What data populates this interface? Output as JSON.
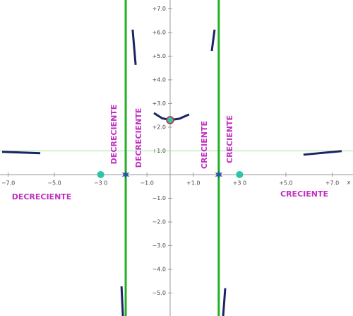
{
  "chart_data": {
    "type": "function",
    "x_label": "x",
    "xlim": [
      -7.35,
      7.9
    ],
    "ylim": [
      -5.97,
      7.37
    ],
    "xticks": [
      {
        "value": -7,
        "label": "−7.0"
      },
      {
        "value": -5,
        "label": "−5.0"
      },
      {
        "value": -3,
        "label": "−3 0"
      },
      {
        "value": -1,
        "label": "−1.0"
      },
      {
        "value": 1,
        "label": "+1.0"
      },
      {
        "value": 3,
        "label": "+3 0"
      },
      {
        "value": 5,
        "label": "+5.0"
      },
      {
        "value": 7,
        "label": "+7.0"
      }
    ],
    "yticks": [
      {
        "value": 7,
        "label": "+7.0"
      },
      {
        "value": 6,
        "label": "+6.0"
      },
      {
        "value": 5,
        "label": "+5.0"
      },
      {
        "value": 4,
        "label": "+4.0"
      },
      {
        "value": 3,
        "label": "+3.0"
      },
      {
        "value": 2,
        "label": "+2.0"
      },
      {
        "value": 1,
        "label": "+1.0"
      },
      {
        "value": -1,
        "label": "−1.0"
      },
      {
        "value": -2,
        "label": "−2.0"
      },
      {
        "value": -3,
        "label": "−3.0"
      },
      {
        "value": -4,
        "label": "−4.0"
      },
      {
        "value": -5,
        "label": "−5.0"
      }
    ],
    "color": "#1c2366",
    "series": [
      {
        "x": [
          -7.26,
          -5.61
        ],
        "values": [
          0.96,
          0.9
        ]
      },
      {
        "x": [
          -2.1,
          -2.04
        ],
        "values": [
          -4.72,
          -5.97
        ]
      },
      {
        "x": [
          -1.62,
          -1.49
        ],
        "values": [
          6.12,
          4.63
        ]
      },
      {
        "x": [
          -0.7,
          -0.35,
          0,
          0.4,
          0.82
        ],
        "values": [
          2.6,
          2.38,
          2.3,
          2.36,
          2.54
        ]
      },
      {
        "x": [
          1.8,
          1.92
        ],
        "values": [
          5.22,
          6.12
        ]
      },
      {
        "x": [
          2.29,
          2.38
        ],
        "values": [
          -5.97,
          -4.8
        ]
      },
      {
        "x": [
          5.76,
          7.41
        ],
        "values": [
          0.84,
          0.99
        ]
      }
    ],
    "vertical_asymptotes": [
      -1.92,
      2.1
    ],
    "horizontal_asymptote": 1,
    "asymptote_color": "#22b022",
    "points": [
      {
        "x": -3,
        "y": 0
      },
      {
        "x": 3,
        "y": 0
      }
    ],
    "point_color": "#2ec4a8",
    "stars": [
      {
        "x": -1.92,
        "y": 0
      },
      {
        "x": 2.1,
        "y": 0
      }
    ],
    "extremum": {
      "x": 0,
      "y": 2.3
    },
    "annotations": [
      "DECRECIENTE",
      "DECRECIENTE",
      "DECRECIENTE",
      "CRECIENTE",
      "CRECIENTE",
      "CRECIENTE"
    ]
  }
}
